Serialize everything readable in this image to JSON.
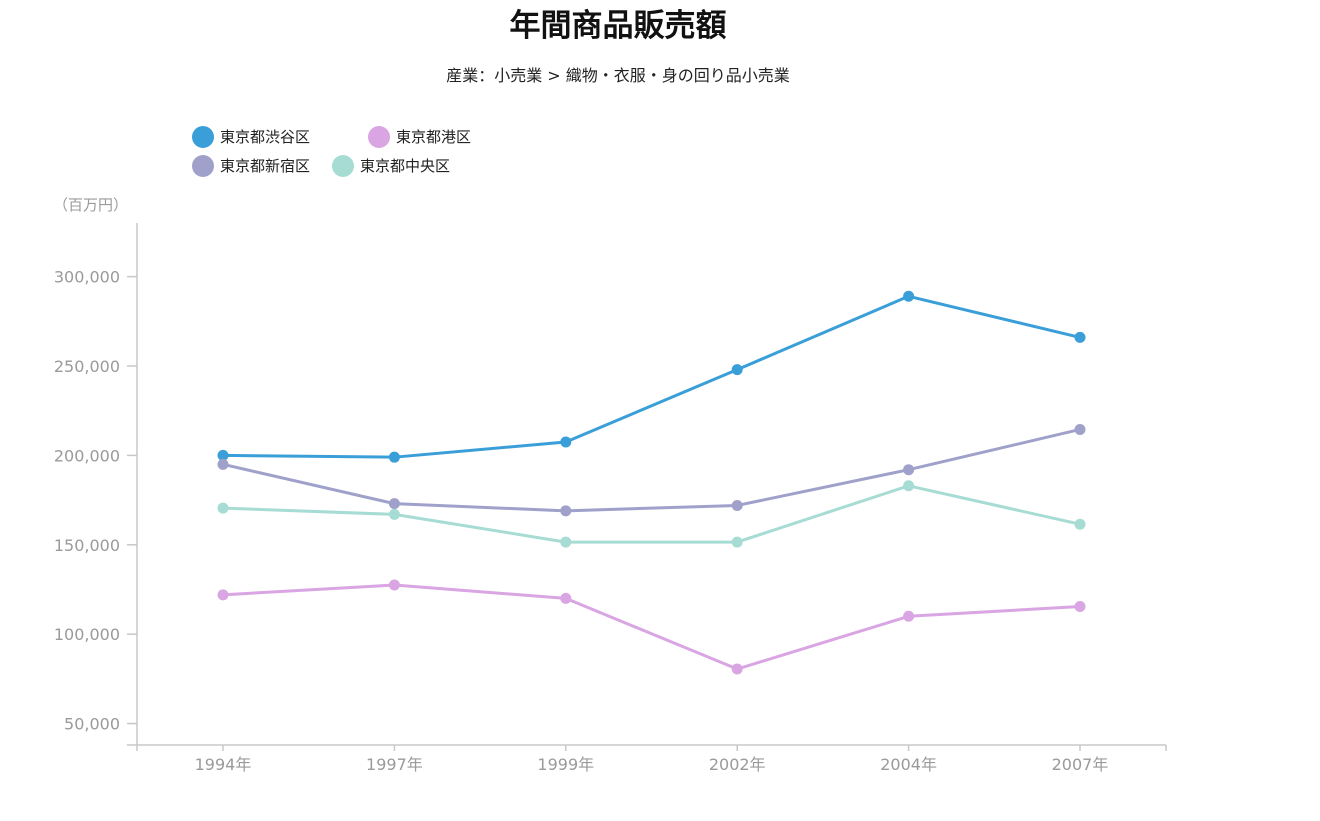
{
  "chart_data": {
    "type": "line",
    "title": "年間商品販売額",
    "subtitle": "産業：小売業 > 織物・衣服・身の回り品小売業",
    "ylabel": "（百万円）",
    "xlabel": "",
    "categories": [
      "1994年",
      "1997年",
      "1999年",
      "2002年",
      "2004年",
      "2007年"
    ],
    "ylim": [
      38000,
      330000
    ],
    "yticks": [
      50000,
      100000,
      150000,
      200000,
      250000,
      300000
    ],
    "ytick_labels": [
      "50,000",
      "100,000",
      "150,000",
      "200,000",
      "250,000",
      "300,000"
    ],
    "grid": false,
    "legend_position": "top-left",
    "series": [
      {
        "name": "東京都渋谷区",
        "color": "#3a9fd8",
        "values": [
          200000,
          199000,
          207500,
          248000,
          289000,
          266000
        ]
      },
      {
        "name": "東京都港区",
        "color": "#d9a5e3",
        "values": [
          122000,
          127500,
          120000,
          80500,
          110000,
          115500
        ]
      },
      {
        "name": "東京都新宿区",
        "color": "#9fa1cb",
        "values": [
          195000,
          173000,
          169000,
          172000,
          192000,
          214500
        ]
      },
      {
        "name": "東京都中央区",
        "color": "#a6dcd3",
        "values": [
          170500,
          167000,
          151500,
          151500,
          183000,
          161500
        ]
      }
    ]
  }
}
